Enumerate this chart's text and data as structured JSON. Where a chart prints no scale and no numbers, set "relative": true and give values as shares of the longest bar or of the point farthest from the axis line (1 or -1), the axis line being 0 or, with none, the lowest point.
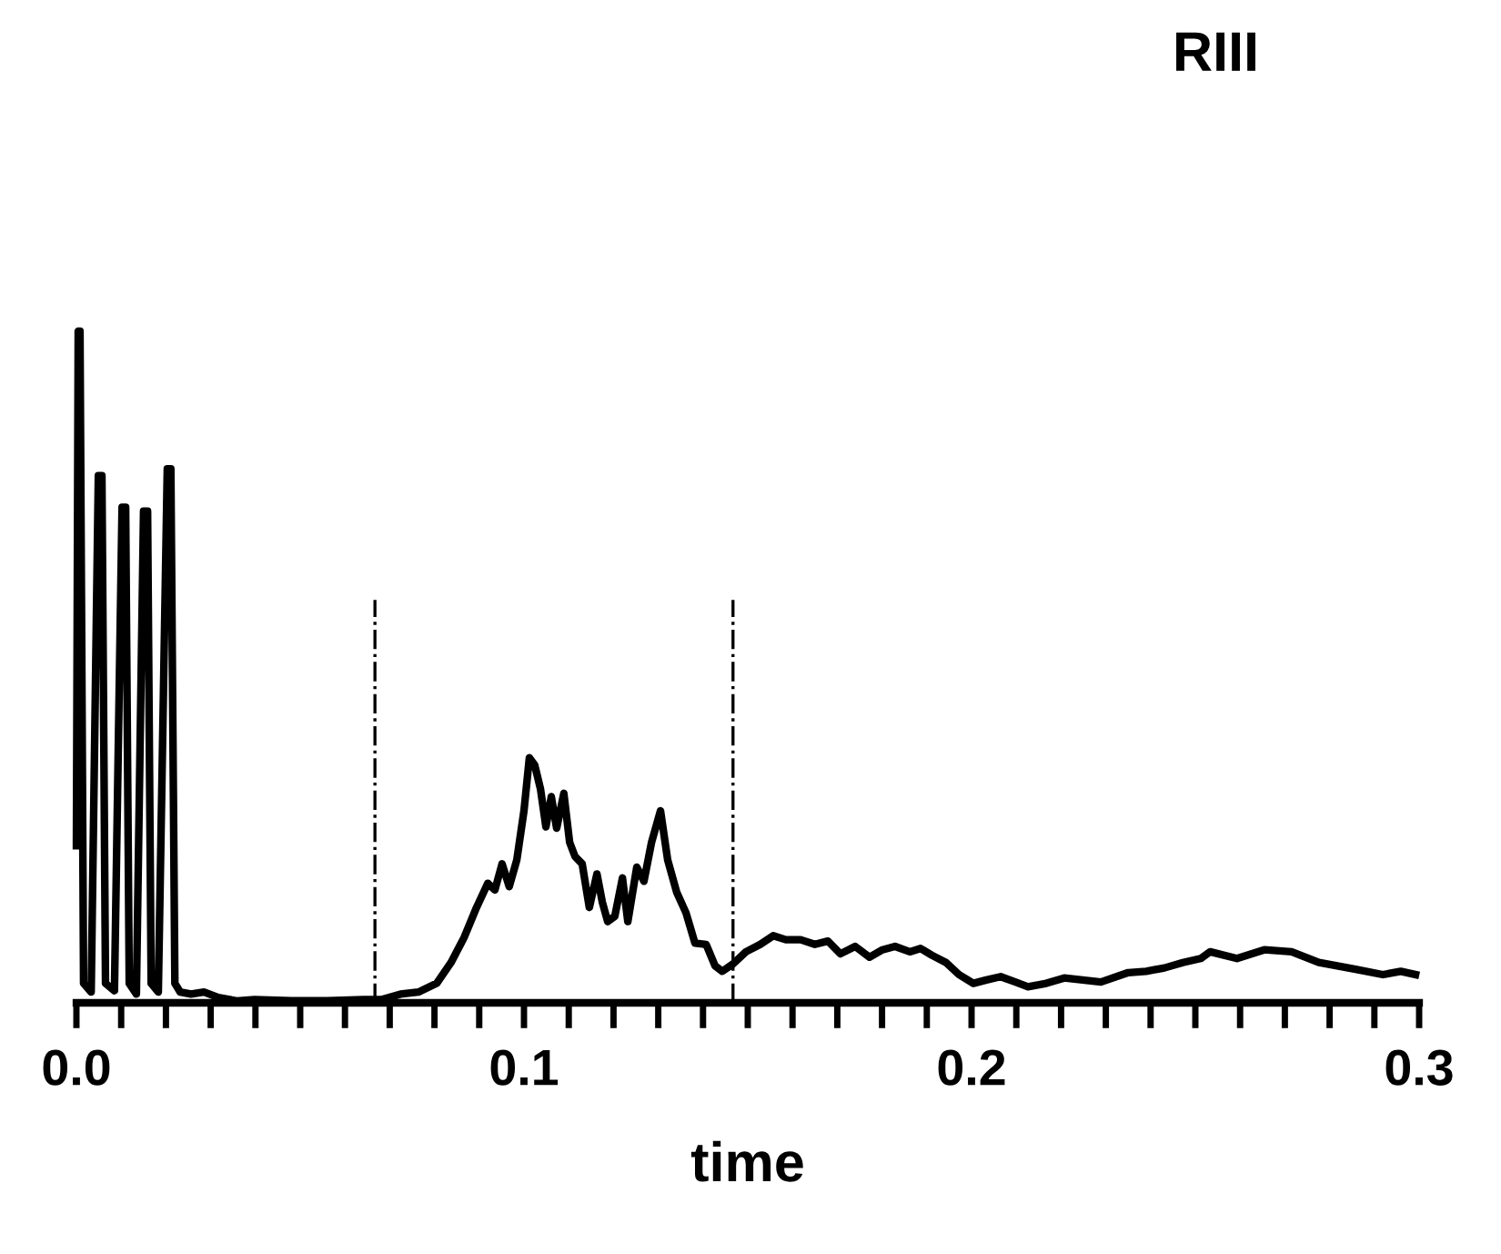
{
  "chart_data": {
    "type": "line",
    "title": "RIII",
    "xlabel": "time",
    "relative": true,
    "xlim": [
      0,
      0.3
    ],
    "xticks": [
      {
        "value": 0,
        "label": "0.0"
      },
      {
        "value": 0.01,
        "label": null
      },
      {
        "value": 0.02,
        "label": null
      },
      {
        "value": 0.03,
        "label": null
      },
      {
        "value": 0.04,
        "label": null
      },
      {
        "value": 0.05,
        "label": null
      },
      {
        "value": 0.06,
        "label": null
      },
      {
        "value": 0.07,
        "label": null
      },
      {
        "value": 0.08,
        "label": null
      },
      {
        "value": 0.09,
        "label": null
      },
      {
        "value": 0.1,
        "label": "0.1"
      },
      {
        "value": 0.11,
        "label": null
      },
      {
        "value": 0.12,
        "label": null
      },
      {
        "value": 0.13,
        "label": null
      },
      {
        "value": 0.14,
        "label": null
      },
      {
        "value": 0.15,
        "label": null
      },
      {
        "value": 0.16,
        "label": null
      },
      {
        "value": 0.17,
        "label": null
      },
      {
        "value": 0.18,
        "label": null
      },
      {
        "value": 0.19,
        "label": null
      },
      {
        "value": 0.2,
        "label": "0.2"
      },
      {
        "value": 0.21,
        "label": null
      },
      {
        "value": 0.22,
        "label": null
      },
      {
        "value": 0.23,
        "label": null
      },
      {
        "value": 0.24,
        "label": null
      },
      {
        "value": 0.25,
        "label": null
      },
      {
        "value": 0.26,
        "label": null
      },
      {
        "value": 0.27,
        "label": null
      },
      {
        "value": 0.28,
        "label": null
      },
      {
        "value": 0.29,
        "label": null
      },
      {
        "value": 0.3,
        "label": "0.3"
      }
    ],
    "tick_labels": "x",
    "grid": false,
    "legend": false,
    "marker": "none",
    "line_style": "solid",
    "ref_lines": [
      {
        "axis": "x",
        "value": 0.0667,
        "label": null,
        "color": "#000000",
        "line_style": "dashdot"
      },
      {
        "axis": "x",
        "value": 0.1467,
        "label": null,
        "color": "#000000",
        "line_style": "dashdot"
      }
    ],
    "series": [
      {
        "color": "#000000",
        "x": [
          0,
          0.0004,
          0.0008,
          0.0016,
          0.0033,
          0.0049,
          0.0057,
          0.0065,
          0.0085,
          0.0102,
          0.011,
          0.0118,
          0.0134,
          0.015,
          0.0159,
          0.0167,
          0.0183,
          0.0203,
          0.0211,
          0.022,
          0.0232,
          0.0256,
          0.0285,
          0.0317,
          0.0358,
          0.0398,
          0.048,
          0.0561,
          0.0642,
          0.0683,
          0.0724,
          0.0764,
          0.0805,
          0.0837,
          0.0866,
          0.0894,
          0.0919,
          0.0935,
          0.0951,
          0.0967,
          0.0984,
          0.1,
          0.1012,
          0.1024,
          0.1037,
          0.1049,
          0.1061,
          0.1073,
          0.1089,
          0.1102,
          0.1114,
          0.113,
          0.1146,
          0.1163,
          0.1175,
          0.1187,
          0.1203,
          0.122,
          0.1232,
          0.1252,
          0.1268,
          0.1285,
          0.1305,
          0.1321,
          0.1341,
          0.1362,
          0.1382,
          0.1407,
          0.1427,
          0.1443,
          0.1467,
          0.1496,
          0.1528,
          0.1557,
          0.1585,
          0.1618,
          0.165,
          0.1679,
          0.1707,
          0.174,
          0.1772,
          0.1801,
          0.1829,
          0.1862,
          0.1886,
          0.1911,
          0.1943,
          0.1972,
          0.2004,
          0.2033,
          0.2065,
          0.2098,
          0.2126,
          0.2167,
          0.2207,
          0.2248,
          0.2289,
          0.235,
          0.239,
          0.2431,
          0.2472,
          0.2512,
          0.2533,
          0.2593,
          0.2654,
          0.2715,
          0.2776,
          0.2817,
          0.2858,
          0.2919,
          0.2959,
          0.2992
        ],
        "values": [
          0.234,
          1,
          1,
          0.029,
          0.016,
          0.785,
          0.785,
          0.029,
          0.018,
          0.738,
          0.738,
          0.029,
          0.013,
          0.732,
          0.732,
          0.029,
          0.016,
          0.795,
          0.795,
          0.029,
          0.016,
          0.013,
          0.016,
          0.008,
          0.003,
          0.005,
          0.003,
          0.003,
          0.005,
          0.005,
          0.013,
          0.016,
          0.029,
          0.06,
          0.097,
          0.142,
          0.178,
          0.168,
          0.207,
          0.173,
          0.213,
          0.286,
          0.365,
          0.354,
          0.318,
          0.262,
          0.307,
          0.26,
          0.312,
          0.239,
          0.218,
          0.207,
          0.142,
          0.192,
          0.15,
          0.121,
          0.129,
          0.186,
          0.121,
          0.202,
          0.181,
          0.239,
          0.286,
          0.213,
          0.165,
          0.134,
          0.089,
          0.087,
          0.055,
          0.047,
          0.058,
          0.076,
          0.087,
          0.1,
          0.094,
          0.094,
          0.087,
          0.092,
          0.073,
          0.084,
          0.068,
          0.079,
          0.084,
          0.076,
          0.081,
          0.071,
          0.06,
          0.042,
          0.029,
          0.034,
          0.039,
          0.031,
          0.024,
          0.029,
          0.037,
          0.034,
          0.031,
          0.045,
          0.047,
          0.052,
          0.06,
          0.066,
          0.076,
          0.066,
          0.079,
          0.076,
          0.06,
          0.055,
          0.05,
          0.042,
          0.047,
          0.042
        ]
      }
    ]
  }
}
